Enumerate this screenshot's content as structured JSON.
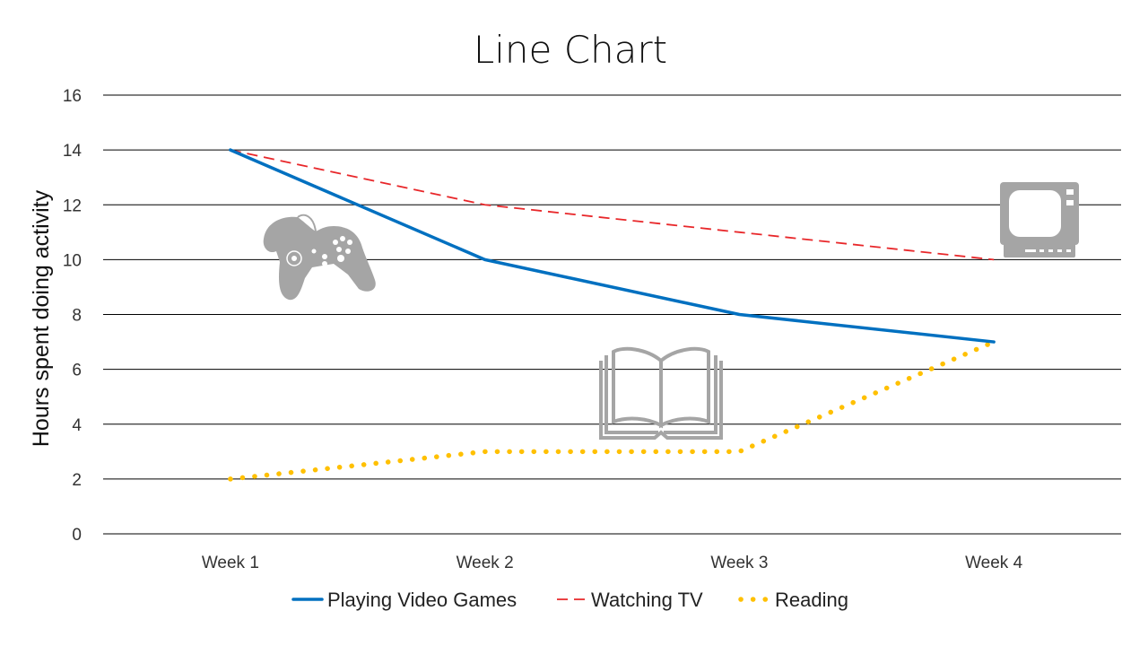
{
  "chart_data": {
    "type": "line",
    "title": "Line Chart",
    "xlabel": "",
    "ylabel": "Hours spent doing activity",
    "categories": [
      "Week 1",
      "Week 2",
      "Week 3",
      "Week 4"
    ],
    "ylim": [
      0,
      16
    ],
    "yticks": [
      0,
      2,
      4,
      6,
      8,
      10,
      12,
      14,
      16
    ],
    "grid": true,
    "legend_position": "bottom",
    "series": [
      {
        "name": "Playing Video Games",
        "values": [
          14,
          10,
          8,
          7
        ],
        "color": "#0070C0",
        "style": "solid"
      },
      {
        "name": "Watching TV",
        "values": [
          14,
          12,
          11,
          10
        ],
        "color": "#E8272A",
        "style": "dashed"
      },
      {
        "name": "Reading",
        "values": [
          2,
          3,
          3,
          7
        ],
        "color": "#FFC000",
        "style": "dotted"
      }
    ],
    "icons": [
      "game-controller-icon",
      "book-icon",
      "tv-icon"
    ]
  }
}
